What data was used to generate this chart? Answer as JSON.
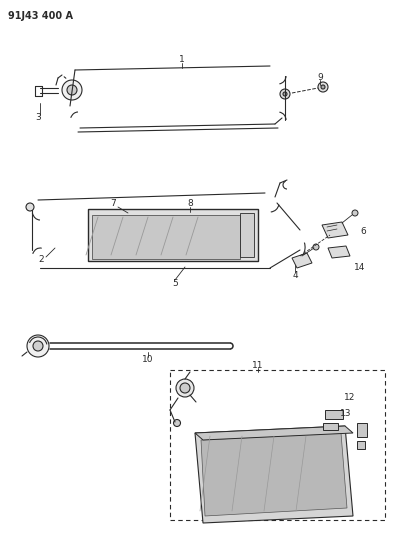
{
  "title_code": "91J43 400 A",
  "bg_color": "#ffffff",
  "line_color": "#2a2a2a",
  "figsize": [
    3.97,
    5.33
  ],
  "dpi": 100
}
